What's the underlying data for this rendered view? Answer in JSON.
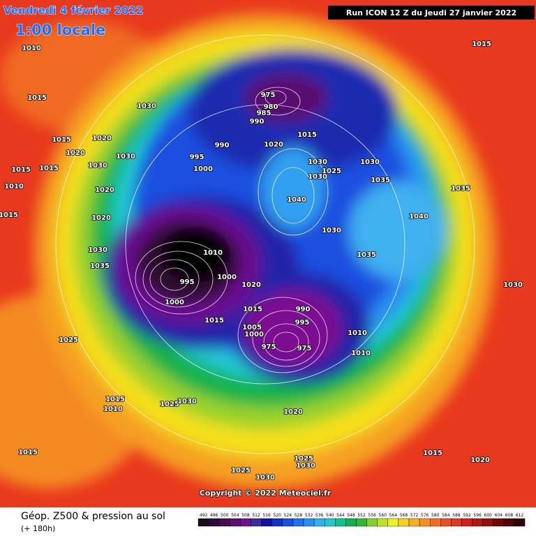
{
  "header": {
    "date": "Vendredi 4 février 2022",
    "time": "1:00 locale",
    "run": "Run ICON 12 Z du Jeudi 27 janvier 2022"
  },
  "copyright": "Copyright © 2022 Meteociel.fr",
  "legend": {
    "title": "Géop. Z500 & pression au sol",
    "lead": "(+ 180h)",
    "levels": [
      492,
      496,
      500,
      504,
      508,
      512,
      516,
      520,
      524,
      528,
      532,
      536,
      540,
      544,
      548,
      552,
      556,
      560,
      564,
      568,
      572,
      576,
      580,
      584,
      588,
      592,
      596,
      600,
      604,
      608,
      612
    ],
    "colors": [
      "#1a0a1a",
      "#2a0a3a",
      "#40104f",
      "#5a1070",
      "#701090",
      "#3a2a9a",
      "#1010a0",
      "#1530c0",
      "#1a50e0",
      "#2070f0",
      "#2a90f0",
      "#30b0f0",
      "#20c8d0",
      "#10c090",
      "#10b050",
      "#30b830",
      "#80d030",
      "#c0e020",
      "#f0f020",
      "#f8d020",
      "#f8b020",
      "#f89020",
      "#f07020",
      "#e85020",
      "#e03820",
      "#d02020",
      "#b01818",
      "#901010",
      "#700808",
      "#500404",
      "#300000"
    ]
  },
  "isobar_labels": [
    1010,
    1015,
    1030,
    1015,
    1020,
    1020,
    1015,
    1015,
    1010,
    1015,
    1030,
    1030,
    975,
    980,
    985,
    990,
    990,
    995,
    1000,
    1020,
    1015,
    1030,
    1030,
    1025,
    1030,
    1040,
    1030,
    1035,
    1040,
    1035,
    1015,
    1020,
    1020,
    1030,
    1035,
    995,
    1000,
    1010,
    1000,
    1020,
    990,
    995,
    975,
    975,
    1005,
    1000,
    1015,
    1015,
    1010,
    1010,
    1025,
    1015,
    1010,
    1025,
    1030,
    1015,
    1020,
    1025,
    1030,
    1025,
    1030,
    1015,
    1020,
    1030,
    1035
  ]
}
